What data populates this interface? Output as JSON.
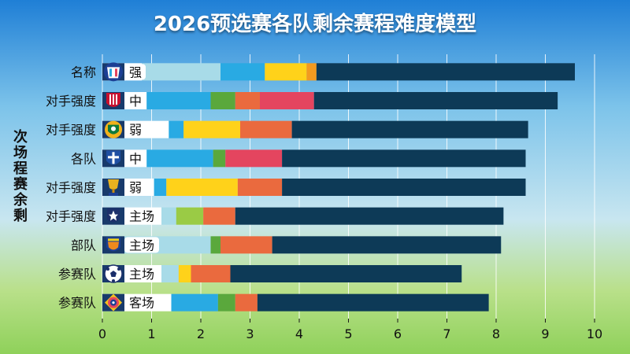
{
  "chart_data": {
    "type": "bar",
    "orientation": "horizontal",
    "stacked": true,
    "title": "2026预选赛各队剩余赛程难度模型",
    "ylabel": "次场程赛余剩",
    "xlabel": "",
    "xlim": [
      0,
      10
    ],
    "xticks": [
      "0",
      "1",
      "2",
      "3",
      "4",
      "5",
      "6",
      "7",
      "8",
      "9",
      "10"
    ],
    "grid": true,
    "legend": "none",
    "categories": [
      "名称",
      "对手强度",
      "对手强度",
      "各队",
      "对手强度",
      "对手强度",
      "部队",
      "参赛队",
      "参赛队"
    ],
    "tags": [
      "强",
      "中",
      "弱",
      "中",
      "弱",
      "主场",
      "主场",
      "主场",
      "客场"
    ],
    "icons": [
      "star-shield-icon",
      "red-stripes-shield-icon",
      "green-gold-crest-icon",
      "blue-cross-shield-icon",
      "gold-trophy-icon",
      "navy-star-crest-icon",
      "orange-tiger-crest-icon",
      "soccer-ball-icon",
      "red-blue-roundel-icon"
    ],
    "segment_colors": [
      "#ffffff",
      "#a8dbe8",
      "#29aae3",
      "#5aa83c",
      "#9acb45",
      "#ffd21a",
      "#ea6a3e",
      "#e4455f",
      "#f29a20",
      "#0d3a57"
    ],
    "bars": [
      [
        0.8,
        1.6,
        0.9,
        0,
        0,
        0.85,
        0,
        0,
        0.2,
        5.25
      ],
      [
        0.9,
        0,
        1.3,
        0.5,
        0,
        0,
        0.5,
        1.1,
        0,
        4.95
      ],
      [
        1.35,
        0,
        0.3,
        0,
        0,
        1.15,
        1.05,
        0,
        0,
        4.8
      ],
      [
        0.9,
        0,
        1.35,
        0.25,
        0,
        0,
        0,
        1.15,
        0,
        4.95
      ],
      [
        1.05,
        0,
        0.25,
        0,
        0,
        1.45,
        0.9,
        0,
        0,
        4.95
      ],
      [
        1.2,
        0.3,
        0,
        0,
        0.55,
        0,
        0.65,
        0,
        0,
        5.45
      ],
      [
        0,
        2.2,
        0,
        0.2,
        0,
        0,
        1.05,
        0,
        0,
        4.65
      ],
      [
        1.2,
        0.35,
        0,
        0,
        0,
        0.25,
        0.8,
        0,
        0,
        4.7
      ],
      [
        1.4,
        0,
        0.95,
        0.35,
        0,
        0,
        0.45,
        0,
        0,
        4.7
      ]
    ]
  }
}
